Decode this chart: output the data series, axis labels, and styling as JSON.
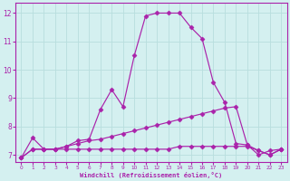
{
  "xlabel": "Windchill (Refroidissement éolien,°C)",
  "background_color": "#d4f0f0",
  "line_color": "#aa22aa",
  "grid_color": "#b8dede",
  "spine_color": "#aa22aa",
  "xlim": [
    -0.5,
    23.5
  ],
  "ylim": [
    6.75,
    12.35
  ],
  "yticks": [
    7,
    8,
    9,
    10,
    11,
    12
  ],
  "xticks": [
    0,
    1,
    2,
    3,
    4,
    5,
    6,
    7,
    8,
    9,
    10,
    11,
    12,
    13,
    14,
    15,
    16,
    17,
    18,
    19,
    20,
    21,
    22,
    23
  ],
  "line1_x": [
    0,
    1,
    2,
    3,
    4,
    5,
    6,
    7,
    8,
    9,
    10,
    11,
    12,
    13,
    14,
    15,
    16,
    17,
    18,
    19,
    20,
    21,
    22,
    23
  ],
  "line1_y": [
    6.9,
    7.6,
    7.2,
    7.2,
    7.3,
    7.5,
    7.55,
    8.6,
    9.3,
    8.7,
    10.5,
    11.9,
    12.0,
    12.0,
    12.0,
    11.5,
    11.1,
    9.55,
    8.85,
    7.4,
    7.35,
    7.0,
    7.15,
    7.2
  ],
  "line2_x": [
    0,
    1,
    2,
    3,
    4,
    5,
    6,
    7,
    8,
    9,
    10,
    11,
    12,
    13,
    14,
    15,
    16,
    17,
    18,
    19,
    20,
    21,
    22,
    23
  ],
  "line2_y": [
    6.9,
    7.2,
    7.2,
    7.2,
    7.3,
    7.4,
    7.5,
    7.55,
    7.65,
    7.75,
    7.85,
    7.95,
    8.05,
    8.15,
    8.25,
    8.35,
    8.45,
    8.55,
    8.65,
    8.7,
    7.35,
    7.15,
    7.0,
    7.2
  ],
  "line3_x": [
    0,
    1,
    2,
    3,
    4,
    5,
    6,
    7,
    8,
    9,
    10,
    11,
    12,
    13,
    14,
    15,
    16,
    17,
    18,
    19,
    20,
    21,
    22,
    23
  ],
  "line3_y": [
    6.9,
    7.2,
    7.2,
    7.2,
    7.2,
    7.2,
    7.2,
    7.2,
    7.2,
    7.2,
    7.2,
    7.2,
    7.2,
    7.2,
    7.3,
    7.3,
    7.3,
    7.3,
    7.3,
    7.3,
    7.3,
    7.15,
    7.0,
    7.2
  ],
  "markersize": 2.5,
  "linewidth": 0.85
}
